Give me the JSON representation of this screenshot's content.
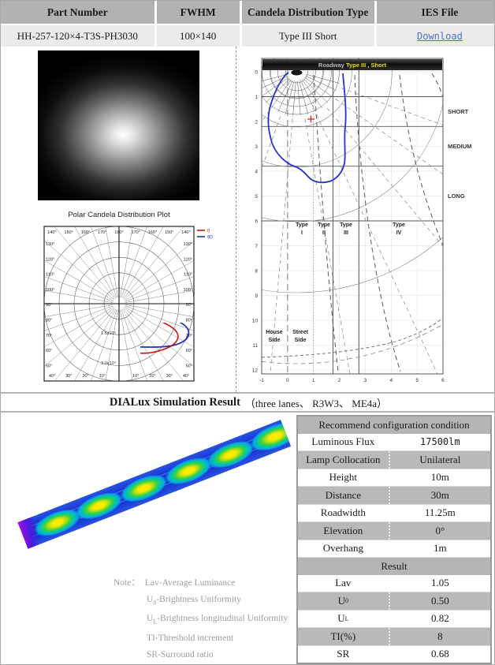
{
  "top_table": {
    "headers": [
      "Part Number",
      "FWHM",
      "Candela Distribution Type",
      "IES File"
    ],
    "row": {
      "part_number": "HH-257-120×4-T3S-PH3030",
      "fwhm": "100×140",
      "distribution_type": "Type III Short",
      "ies_link": "Download"
    }
  },
  "polar_plot": {
    "title": "Polar Candela Distribution Plot",
    "legend": [
      {
        "label": "0",
        "color": "#cc1111"
      },
      {
        "label": "90",
        "color": "#2233bb"
      }
    ],
    "angle_labels_top": [
      "140°",
      "150°",
      "160°",
      "170°",
      "180°",
      "170°",
      "160°",
      "150°",
      "140°"
    ],
    "angle_labels_bottom": [
      "40°",
      "30°",
      "20°",
      "10°",
      "",
      "10°",
      "20°",
      "30°",
      "40°"
    ],
    "angle_labels_left": [
      "130°",
      "120°",
      "110°",
      "100°",
      "90°",
      "80°",
      "70°",
      "60°",
      "50°"
    ],
    "angle_labels_right": [
      "130°",
      "120°",
      "110°",
      "100°",
      "90°",
      "80°",
      "70°",
      "60°",
      "50°"
    ],
    "radial_labels": [
      "1.5x10⁴",
      "3.0x10⁴"
    ]
  },
  "roadway_chart": {
    "title_prefix": "Roadway ",
    "title_highlight": "Type III , Short",
    "title_highlight_color": "#e8e000",
    "y_ticks": [
      "0",
      "1",
      "2",
      "3",
      "4",
      "5",
      "6",
      "7",
      "8",
      "9",
      "10",
      "11",
      "12"
    ],
    "x_ticks": [
      "-1",
      "0",
      "1",
      "2",
      "3",
      "4",
      "5",
      "6"
    ],
    "range_labels": [
      "SHORT",
      "MEDIUM",
      "LONG"
    ],
    "type_labels": [
      {
        "line1": "Type",
        "line2": "I"
      },
      {
        "line1": "Type",
        "line2": "II"
      },
      {
        "line1": "Type",
        "line2": "III"
      },
      {
        "line1": "Type",
        "line2": "IV"
      }
    ],
    "side_labels": [
      {
        "line1": "House",
        "line2": "Side"
      },
      {
        "line1": "Street",
        "line2": "Side"
      }
    ]
  },
  "dialux": {
    "title": "DIALux Simulation Result",
    "subtitle": "（three lanes、 R3W3、 ME4a）"
  },
  "config_table": {
    "header": "Recommend configuration condition",
    "rows": [
      {
        "label": "Luminous Flux",
        "value": "17500lm"
      },
      {
        "label": "Lamp Collocation",
        "value": "Unilateral"
      },
      {
        "label": "Height",
        "value": "10m"
      },
      {
        "label": "Distance",
        "value": "30m"
      },
      {
        "label": "Roadwidth",
        "value": "11.25m"
      },
      {
        "label": "Elevation",
        "value": "0°"
      },
      {
        "label": "Overhang",
        "value": "1m"
      }
    ],
    "result_header": "Result",
    "result_rows": [
      {
        "base": "Lav",
        "sub": "",
        "value": "1.05"
      },
      {
        "base": "U",
        "sub": "0",
        "value": "0.50"
      },
      {
        "base": "U",
        "sub": "L",
        "value": "0.82"
      },
      {
        "base": "TI(%)",
        "sub": "",
        "value": "8"
      },
      {
        "base": "SR",
        "sub": "",
        "value": "0.68"
      }
    ]
  },
  "notes": {
    "prefix": "Note：",
    "lines": [
      {
        "base": "Lav",
        "sub": "",
        "text": "-Average Luminance"
      },
      {
        "base": "U",
        "sub": "0",
        "text": "-Brightness Uniformity"
      },
      {
        "base": "U",
        "sub": "L",
        "text": "-Brightness longitudinal Uniformity"
      },
      {
        "base": "TI",
        "sub": "",
        "text": "-Threshold increment"
      },
      {
        "base": "SR",
        "sub": "",
        "text": "-Surround ratio"
      }
    ]
  }
}
